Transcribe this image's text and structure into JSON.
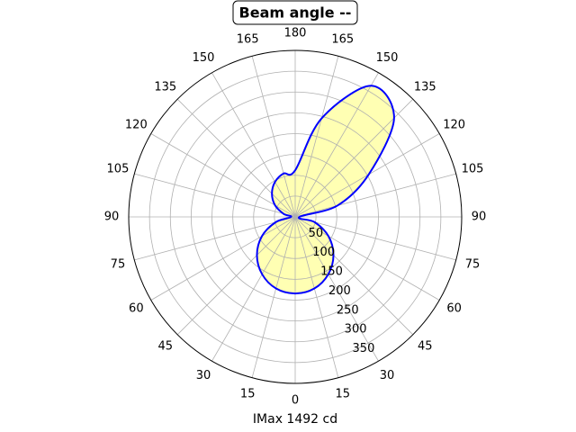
{
  "chart_data": {
    "type": "polar",
    "title": "Beam angle --",
    "xlabel": "IMax 1492 cd",
    "theta": [
      -180,
      -165,
      -150,
      -135,
      -120,
      -105,
      -90,
      -75,
      -60,
      -45,
      -30,
      -15,
      0,
      15,
      30,
      45,
      60,
      75,
      90,
      105,
      120,
      135,
      150,
      165
    ],
    "series": [
      {
        "color": "#0000ff",
        "fill": "#ffff99",
        "values": [
          112,
          108,
          97,
          79,
          56,
          29,
          10,
          48,
          92,
          130,
          159,
          178,
          184,
          178,
          159,
          130,
          92,
          48,
          10,
          105,
          204,
          336,
          364,
          245
        ]
      }
    ],
    "rlim": [
      0,
      400
    ],
    "rticks": [
      50,
      100,
      150,
      200,
      250,
      300,
      350
    ],
    "thetaticks": [
      {
        "value": -165,
        "label": "165"
      },
      {
        "value": -150,
        "label": "150"
      },
      {
        "value": -135,
        "label": "135"
      },
      {
        "value": -120,
        "label": "120"
      },
      {
        "value": -105,
        "label": "105"
      },
      {
        "value": -90,
        "label": "90"
      },
      {
        "value": -75,
        "label": "75"
      },
      {
        "value": -60,
        "label": "60"
      },
      {
        "value": -45,
        "label": "45"
      },
      {
        "value": -30,
        "label": "30"
      },
      {
        "value": -15,
        "label": "15"
      },
      0,
      15,
      30,
      45,
      60,
      75,
      90,
      105,
      120,
      135,
      150,
      165,
      180
    ],
    "grid": true
  }
}
